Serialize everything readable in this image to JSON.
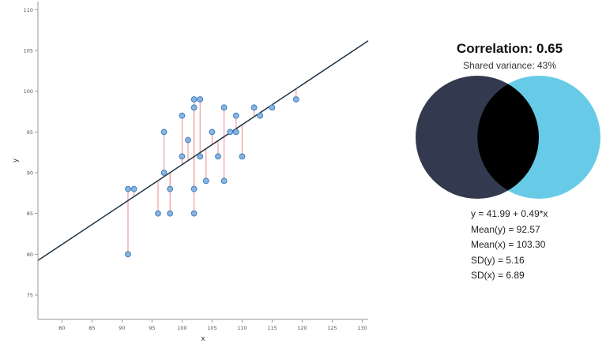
{
  "chart_data": {
    "type": "scatter",
    "xlabel": "x",
    "ylabel": "y",
    "xlim": [
      76,
      131
    ],
    "ylim": [
      72,
      111
    ],
    "x_ticks": [
      80,
      85,
      90,
      95,
      100,
      105,
      110,
      115,
      120,
      125,
      130
    ],
    "y_ticks": [
      75,
      80,
      85,
      90,
      95,
      100,
      105,
      110
    ],
    "points": [
      {
        "x": 91,
        "y": 88
      },
      {
        "x": 91,
        "y": 80
      },
      {
        "x": 92,
        "y": 88
      },
      {
        "x": 96,
        "y": 85
      },
      {
        "x": 97,
        "y": 95
      },
      {
        "x": 97,
        "y": 90
      },
      {
        "x": 98,
        "y": 88
      },
      {
        "x": 98,
        "y": 85
      },
      {
        "x": 100,
        "y": 97
      },
      {
        "x": 100,
        "y": 92
      },
      {
        "x": 101,
        "y": 94
      },
      {
        "x": 102,
        "y": 99
      },
      {
        "x": 102,
        "y": 98
      },
      {
        "x": 102,
        "y": 88
      },
      {
        "x": 102,
        "y": 85
      },
      {
        "x": 103,
        "y": 99
      },
      {
        "x": 103,
        "y": 92
      },
      {
        "x": 104,
        "y": 89
      },
      {
        "x": 105,
        "y": 95
      },
      {
        "x": 106,
        "y": 92
      },
      {
        "x": 107,
        "y": 98
      },
      {
        "x": 107,
        "y": 89
      },
      {
        "x": 108,
        "y": 95
      },
      {
        "x": 109,
        "y": 97
      },
      {
        "x": 109,
        "y": 95
      },
      {
        "x": 110,
        "y": 92
      },
      {
        "x": 112,
        "y": 98
      },
      {
        "x": 113,
        "y": 97
      },
      {
        "x": 115,
        "y": 98
      },
      {
        "x": 119,
        "y": 99
      }
    ],
    "regression": {
      "intercept": 41.99,
      "slope": 0.49
    },
    "colors": {
      "point_fill": "#8ab4de",
      "point_stroke": "#3f7fc2",
      "residual": "#f08a8a",
      "line": "#1f3344",
      "axis": "#999999"
    }
  },
  "stats": {
    "correlation_title": "Correlation: 0.65",
    "shared_variance": "Shared variance: 43%",
    "lines": [
      "y = 41.99 + 0.49*x",
      "Mean(y) = 92.57",
      "Mean(x) = 103.30",
      "SD(y) = 5.16",
      "SD(x) = 6.89"
    ],
    "venn_colors": {
      "left": "#33394f",
      "right": "#67cbe8",
      "overlap": "#000000"
    }
  }
}
